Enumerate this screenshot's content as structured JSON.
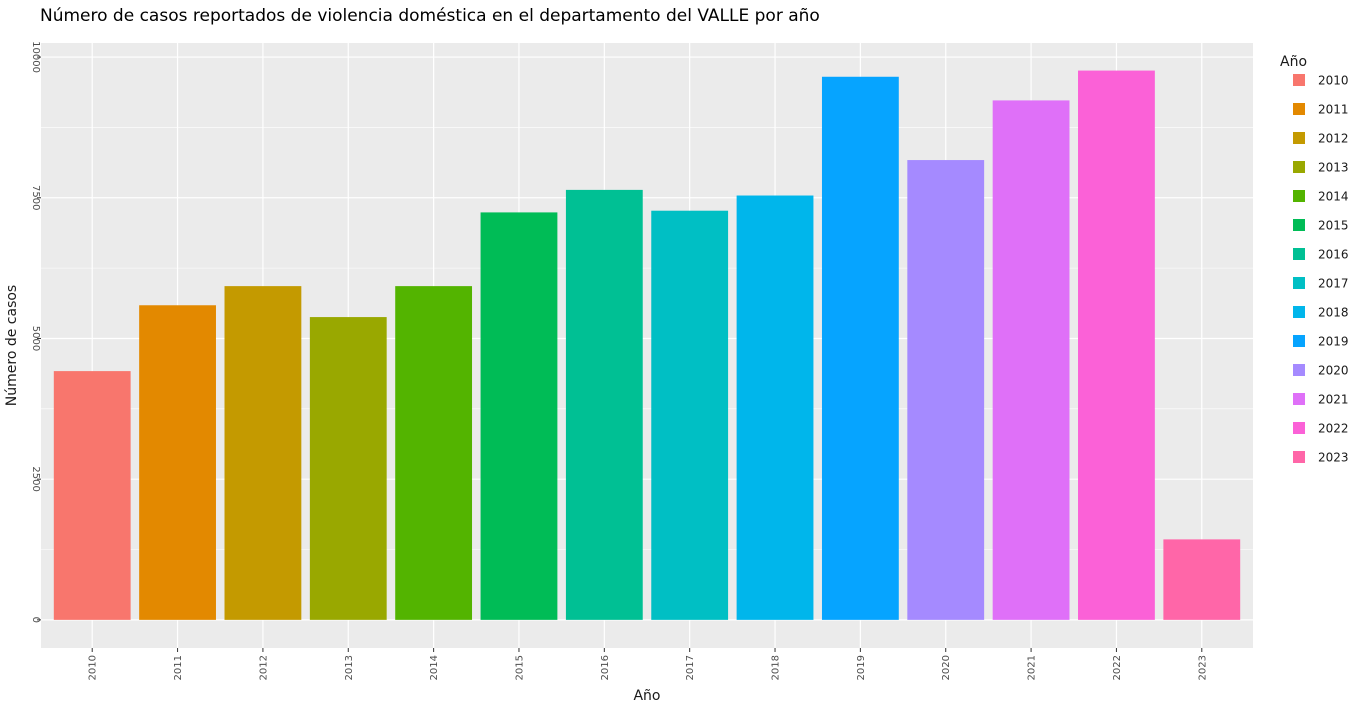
{
  "chart_data": {
    "type": "bar",
    "title": "Número de casos reportados de violencia doméstica en el departamento del VALLE por año",
    "xlabel": "Año",
    "ylabel": "Número de casos",
    "categories": [
      "2010",
      "2011",
      "2012",
      "2013",
      "2014",
      "2015",
      "2016",
      "2017",
      "2018",
      "2019",
      "2020",
      "2021",
      "2022",
      "2023"
    ],
    "values": [
      4420,
      5590,
      5930,
      5380,
      5930,
      7240,
      7640,
      7270,
      7540,
      9650,
      8170,
      9230,
      9760,
      1430
    ],
    "colors": [
      "#F8766D",
      "#E38900",
      "#C49A00",
      "#99A800",
      "#53B400",
      "#00BC56",
      "#00C094",
      "#00BFC4",
      "#00B6EB",
      "#06A4FF",
      "#A58AFF",
      "#DF70F8",
      "#FB61D7",
      "#FF66A8"
    ],
    "yticks": [
      0,
      2500,
      5000,
      7500,
      10000
    ],
    "ytick_labels": [
      "0",
      "2500",
      "5000",
      "7500",
      "10000"
    ],
    "ylim": [
      -500,
      10250
    ],
    "grid": true,
    "panel_background": "#EBEBEB",
    "legend": {
      "title": "Año",
      "position": "right"
    }
  }
}
